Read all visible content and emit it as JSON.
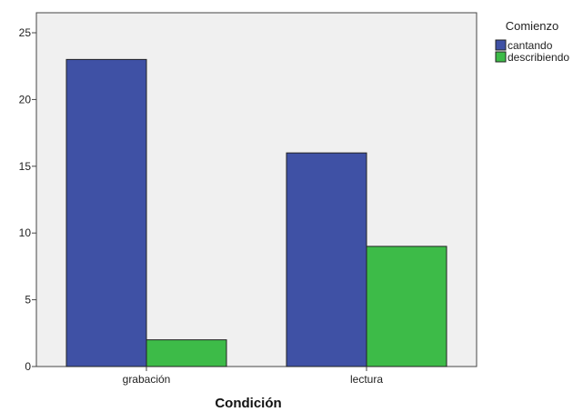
{
  "chart_data": {
    "type": "bar",
    "title": "",
    "xlabel": "Condición",
    "ylabel": "",
    "categories": [
      "grabación",
      "lectura"
    ],
    "series": [
      {
        "name": "cantando",
        "values": [
          23,
          16
        ],
        "color": "#3f51a5"
      },
      {
        "name": "describiendo",
        "values": [
          2,
          9
        ],
        "color": "#3dbb48"
      }
    ],
    "ylim": [
      0,
      26.5
    ],
    "yticks": [
      0,
      5,
      10,
      15,
      20,
      25
    ],
    "grid": false,
    "plot_background": "#f0f0f0",
    "legend": {
      "title": "Comienzo",
      "placement": "right"
    }
  }
}
